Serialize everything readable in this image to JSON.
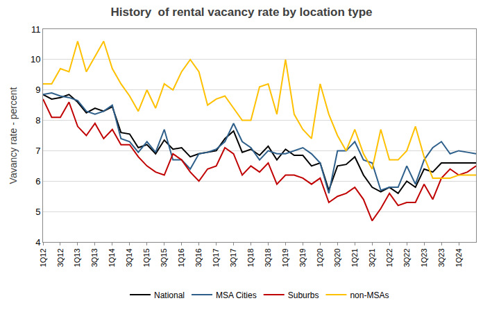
{
  "chart_data": {
    "type": "line",
    "title": "History  of rental vacancy rate by location type",
    "y_label": "Vavancy rate - percent",
    "categories": [
      "1Q12",
      null,
      "3Q12",
      null,
      "1Q13",
      null,
      "3Q13",
      null,
      "1Q14",
      null,
      "3Q14",
      null,
      "1Q15",
      null,
      "3Q15",
      null,
      "1Q16",
      null,
      "3Q16",
      null,
      "1Q17",
      null,
      "3Q17",
      null,
      "1Q18",
      null,
      "3Q18",
      null,
      "1Q19",
      null,
      "3Q19",
      null,
      "1Q20",
      null,
      "3Q20",
      null,
      "1Q21",
      null,
      "3Q21",
      null,
      "1Q22",
      null,
      "3Q22",
      null,
      "1Q23",
      null,
      "3Q23",
      null,
      "1Q24",
      null,
      null
    ],
    "series": [
      {
        "name": "National",
        "color": "#000000",
        "values": [
          8.85,
          8.7,
          8.75,
          8.85,
          8.6,
          8.25,
          8.4,
          8.3,
          8.45,
          7.6,
          7.55,
          7.1,
          7.2,
          6.9,
          7.35,
          7.05,
          7.1,
          6.8,
          6.9,
          6.95,
          7.0,
          7.4,
          7.65,
          6.95,
          7.05,
          6.85,
          7.15,
          6.7,
          7.05,
          6.85,
          6.85,
          6.5,
          6.6,
          5.7,
          6.5,
          6.55,
          6.8,
          6.2,
          5.8,
          5.65,
          5.8,
          5.6,
          6.0,
          5.8,
          6.4,
          6.3,
          6.6,
          6.6,
          6.6,
          6.6,
          6.6
        ]
      },
      {
        "name": "MSA Cities",
        "color": "#2e5f8a",
        "values": [
          8.85,
          8.9,
          8.8,
          8.75,
          8.65,
          8.3,
          8.2,
          8.3,
          8.5,
          7.4,
          7.3,
          6.95,
          7.3,
          6.95,
          7.7,
          6.7,
          6.7,
          6.4,
          6.9,
          6.95,
          7.05,
          7.3,
          7.9,
          7.3,
          7.1,
          6.7,
          7.0,
          6.9,
          6.9,
          7.0,
          7.1,
          6.9,
          6.6,
          5.6,
          7.0,
          7.0,
          7.3,
          6.7,
          6.6,
          5.7,
          5.8,
          5.8,
          6.5,
          5.9,
          6.7,
          7.1,
          7.3,
          6.9,
          7.0,
          6.95,
          6.9
        ]
      },
      {
        "name": "Suburbs",
        "color": "#c00000",
        "values": [
          8.7,
          8.1,
          8.1,
          8.6,
          7.8,
          7.5,
          7.9,
          7.4,
          7.7,
          7.2,
          7.2,
          6.8,
          6.5,
          6.3,
          6.2,
          6.9,
          6.7,
          6.3,
          6.0,
          6.4,
          6.5,
          7.1,
          6.9,
          6.2,
          6.5,
          6.3,
          6.6,
          5.9,
          6.2,
          6.2,
          6.1,
          5.9,
          6.1,
          5.3,
          5.5,
          5.6,
          5.8,
          5.4,
          4.7,
          5.1,
          5.6,
          5.2,
          5.3,
          5.3,
          5.9,
          5.4,
          6.1,
          6.4,
          6.2,
          6.3,
          6.5
        ]
      },
      {
        "name": "non-MSAs",
        "color": "#ffc000",
        "values": [
          9.2,
          9.2,
          9.7,
          9.6,
          10.6,
          9.6,
          10.1,
          10.6,
          9.7,
          9.2,
          8.8,
          8.3,
          9.0,
          8.4,
          9.2,
          9.0,
          9.6,
          10.0,
          9.6,
          8.5,
          8.7,
          8.8,
          8.4,
          8.0,
          8.0,
          9.1,
          9.2,
          8.2,
          10.0,
          8.2,
          7.7,
          7.4,
          9.2,
          8.2,
          7.5,
          7.0,
          7.7,
          6.9,
          6.4,
          7.7,
          6.7,
          6.7,
          7.0,
          7.8,
          6.8,
          6.1,
          6.1,
          6.1,
          6.2,
          6.2,
          6.2
        ]
      }
    ],
    "ylim": [
      4,
      11
    ],
    "yticks": [
      4,
      5,
      6,
      7,
      8,
      9,
      10,
      11
    ],
    "grid": true,
    "legend": "bottom"
  }
}
